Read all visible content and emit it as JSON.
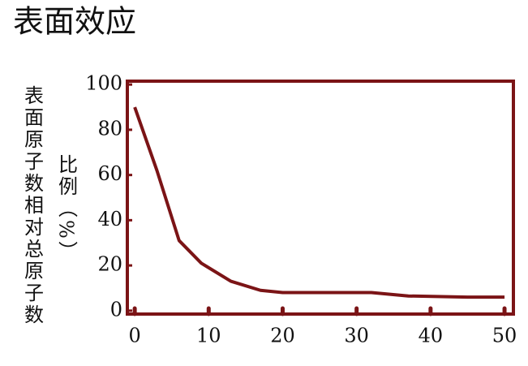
{
  "chart_data": {
    "type": "line",
    "title": "表面效应",
    "ylabel": [
      "表面原子数相对总原子数",
      "比例（%）"
    ],
    "x": [
      0,
      3,
      6,
      9,
      13,
      17,
      20,
      32,
      37,
      45,
      50
    ],
    "values": [
      90,
      62,
      31,
      21,
      13,
      9,
      8,
      8,
      6.5,
      6,
      6
    ],
    "color": "#7b1416",
    "xlim": [
      -1,
      51.2
    ],
    "ylim": [
      -1.5,
      101.5
    ],
    "xticks": [
      0,
      10,
      20,
      30,
      40,
      50
    ],
    "yticks": [
      0,
      20,
      40,
      60,
      80,
      100
    ]
  }
}
